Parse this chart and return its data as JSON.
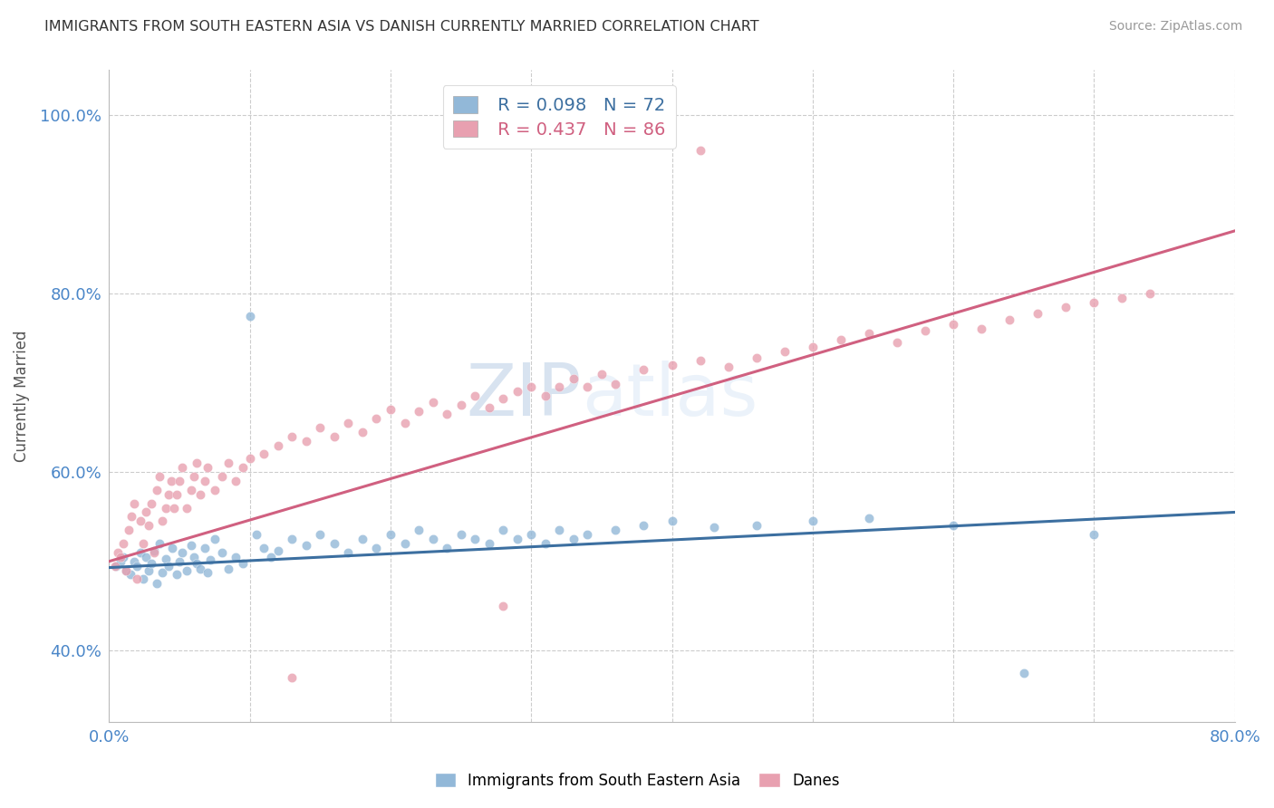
{
  "title": "IMMIGRANTS FROM SOUTH EASTERN ASIA VS DANISH CURRENTLY MARRIED CORRELATION CHART",
  "source": "Source: ZipAtlas.com",
  "ylabel": "Currently Married",
  "xlim": [
    0.0,
    0.8
  ],
  "ylim": [
    0.32,
    1.05
  ],
  "xticks": [
    0.0,
    0.1,
    0.2,
    0.3,
    0.4,
    0.5,
    0.6,
    0.7,
    0.8
  ],
  "xticklabels": [
    "0.0%",
    "",
    "",
    "",
    "",
    "",
    "",
    "",
    "80.0%"
  ],
  "yticks": [
    0.4,
    0.6,
    0.8,
    1.0
  ],
  "yticklabels": [
    "40.0%",
    "60.0%",
    "80.0%",
    "100.0%"
  ],
  "blue_color": "#92b8d8",
  "pink_color": "#e8a0b0",
  "blue_line_color": "#3c6fa0",
  "pink_line_color": "#d06080",
  "legend_blue_R": "R = 0.098",
  "legend_blue_N": "N = 72",
  "legend_pink_R": "R = 0.437",
  "legend_pink_N": "N = 86",
  "legend_label_blue": "Immigrants from South Eastern Asia",
  "legend_label_pink": "Danes",
  "watermark_1": "ZIP",
  "watermark_2": "atlas",
  "blue_scatter_x": [
    0.005,
    0.008,
    0.01,
    0.012,
    0.015,
    0.018,
    0.02,
    0.022,
    0.024,
    0.026,
    0.028,
    0.03,
    0.032,
    0.034,
    0.036,
    0.038,
    0.04,
    0.042,
    0.045,
    0.048,
    0.05,
    0.052,
    0.055,
    0.058,
    0.06,
    0.062,
    0.065,
    0.068,
    0.07,
    0.072,
    0.075,
    0.08,
    0.085,
    0.09,
    0.095,
    0.1,
    0.105,
    0.11,
    0.115,
    0.12,
    0.13,
    0.14,
    0.15,
    0.16,
    0.17,
    0.18,
    0.19,
    0.2,
    0.21,
    0.22,
    0.23,
    0.24,
    0.25,
    0.26,
    0.27,
    0.28,
    0.29,
    0.3,
    0.31,
    0.32,
    0.33,
    0.34,
    0.36,
    0.38,
    0.4,
    0.43,
    0.46,
    0.5,
    0.54,
    0.6,
    0.65,
    0.7
  ],
  "blue_scatter_y": [
    0.495,
    0.5,
    0.505,
    0.49,
    0.485,
    0.5,
    0.495,
    0.51,
    0.48,
    0.505,
    0.49,
    0.498,
    0.512,
    0.475,
    0.52,
    0.488,
    0.503,
    0.495,
    0.515,
    0.485,
    0.5,
    0.51,
    0.49,
    0.518,
    0.505,
    0.498,
    0.492,
    0.515,
    0.488,
    0.502,
    0.525,
    0.51,
    0.492,
    0.505,
    0.498,
    0.775,
    0.53,
    0.515,
    0.505,
    0.512,
    0.525,
    0.518,
    0.53,
    0.52,
    0.51,
    0.525,
    0.515,
    0.53,
    0.52,
    0.535,
    0.525,
    0.515,
    0.53,
    0.525,
    0.52,
    0.535,
    0.525,
    0.53,
    0.52,
    0.535,
    0.525,
    0.53,
    0.535,
    0.54,
    0.545,
    0.538,
    0.54,
    0.545,
    0.548,
    0.54,
    0.375,
    0.53
  ],
  "pink_scatter_x": [
    0.004,
    0.006,
    0.008,
    0.01,
    0.012,
    0.014,
    0.016,
    0.018,
    0.02,
    0.022,
    0.024,
    0.026,
    0.028,
    0.03,
    0.032,
    0.034,
    0.036,
    0.038,
    0.04,
    0.042,
    0.044,
    0.046,
    0.048,
    0.05,
    0.052,
    0.055,
    0.058,
    0.06,
    0.062,
    0.065,
    0.068,
    0.07,
    0.075,
    0.08,
    0.085,
    0.09,
    0.095,
    0.1,
    0.11,
    0.12,
    0.13,
    0.14,
    0.15,
    0.16,
    0.17,
    0.18,
    0.19,
    0.2,
    0.21,
    0.22,
    0.23,
    0.24,
    0.25,
    0.26,
    0.27,
    0.28,
    0.29,
    0.3,
    0.31,
    0.32,
    0.33,
    0.34,
    0.35,
    0.36,
    0.38,
    0.4,
    0.42,
    0.44,
    0.46,
    0.48,
    0.5,
    0.52,
    0.54,
    0.56,
    0.58,
    0.6,
    0.62,
    0.64,
    0.66,
    0.68,
    0.7,
    0.72,
    0.74,
    0.13,
    0.28,
    0.42
  ],
  "pink_scatter_y": [
    0.495,
    0.51,
    0.505,
    0.52,
    0.49,
    0.535,
    0.55,
    0.565,
    0.48,
    0.545,
    0.52,
    0.555,
    0.54,
    0.565,
    0.51,
    0.58,
    0.595,
    0.545,
    0.56,
    0.575,
    0.59,
    0.56,
    0.575,
    0.59,
    0.605,
    0.56,
    0.58,
    0.595,
    0.61,
    0.575,
    0.59,
    0.605,
    0.58,
    0.595,
    0.61,
    0.59,
    0.605,
    0.615,
    0.62,
    0.63,
    0.64,
    0.635,
    0.65,
    0.64,
    0.655,
    0.645,
    0.66,
    0.67,
    0.655,
    0.668,
    0.678,
    0.665,
    0.675,
    0.685,
    0.672,
    0.682,
    0.69,
    0.695,
    0.685,
    0.695,
    0.705,
    0.695,
    0.71,
    0.698,
    0.715,
    0.72,
    0.725,
    0.718,
    0.728,
    0.735,
    0.74,
    0.748,
    0.755,
    0.745,
    0.758,
    0.765,
    0.76,
    0.77,
    0.778,
    0.785,
    0.79,
    0.795,
    0.8,
    0.37,
    0.45,
    0.96
  ],
  "blue_trend_x": [
    0.0,
    0.8
  ],
  "blue_trend_y": [
    0.493,
    0.555
  ],
  "pink_trend_x": [
    0.0,
    0.8
  ],
  "pink_trend_y": [
    0.5,
    0.87
  ]
}
